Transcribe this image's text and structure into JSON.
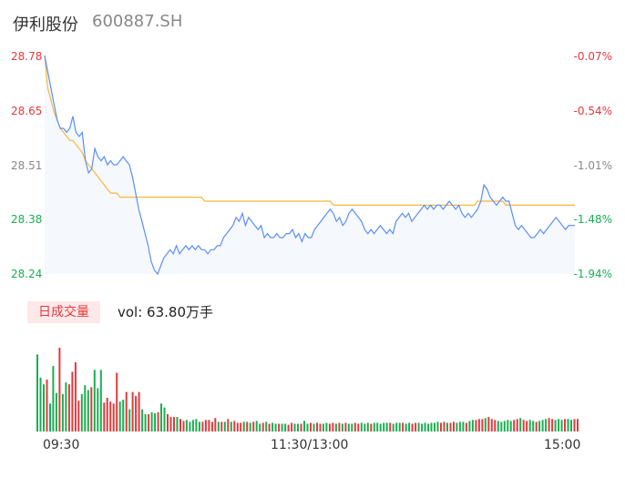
{
  "header": {
    "name": "伊利股份",
    "code": "600887.SH"
  },
  "volume": {
    "tag": "日成交量",
    "text": "vol: 63.80万手"
  },
  "colors": {
    "price": "#5b8ff9",
    "avg": "#f6b93b",
    "up": "#e4393c",
    "down": "#1aae52",
    "flat": "#888888"
  },
  "chart_data": [
    {
      "type": "line",
      "series": [
        {
          "values": [
            28.78,
            28.74,
            28.7,
            28.66,
            28.62,
            28.6,
            28.6,
            28.59,
            28.6,
            28.63,
            28.59,
            28.58,
            28.59,
            28.52,
            28.49,
            28.5,
            28.55,
            28.53,
            28.52,
            28.53,
            28.51,
            28.52,
            28.51,
            28.51,
            28.52,
            28.53,
            28.52,
            28.51,
            28.48,
            28.44,
            28.4,
            28.37,
            28.34,
            28.31,
            28.27,
            28.25,
            28.24,
            28.26,
            28.28,
            28.29,
            28.3,
            28.29,
            28.31,
            28.29,
            28.3,
            28.31,
            28.3,
            28.31,
            28.3,
            28.31,
            28.3,
            28.3,
            28.29,
            28.3,
            28.3,
            28.31,
            28.31,
            28.33,
            28.34,
            28.35,
            28.36,
            28.38,
            28.37,
            28.39,
            28.36,
            28.38,
            28.37,
            28.36,
            28.35,
            28.36,
            28.33,
            28.34,
            28.33,
            28.33,
            28.34,
            28.33,
            28.33,
            28.34,
            28.34,
            28.35,
            28.33,
            28.34,
            28.32,
            28.34,
            28.33,
            28.33,
            28.35,
            28.36,
            28.37,
            28.38,
            28.39,
            28.4,
            28.39,
            28.37,
            28.38,
            28.36,
            28.37,
            28.39,
            28.4,
            28.39,
            28.38,
            28.37,
            28.35,
            28.34,
            28.35,
            28.34,
            28.35,
            28.36,
            28.35,
            28.34,
            28.35,
            28.34,
            28.37,
            28.38,
            28.39,
            28.38,
            28.39,
            28.37,
            28.38,
            28.39,
            28.4,
            28.41,
            28.4,
            28.41,
            28.4,
            28.41,
            28.41,
            28.4,
            28.41,
            28.42,
            28.41,
            28.4,
            28.41,
            28.39,
            28.38,
            28.39,
            28.38,
            28.39,
            28.4,
            28.42,
            28.46,
            28.45,
            28.43,
            28.42,
            28.41,
            28.42,
            28.43,
            28.42,
            28.42,
            28.39,
            28.36,
            28.35,
            28.36,
            28.35,
            28.34,
            28.33,
            28.33,
            28.34,
            28.35,
            28.34,
            28.35,
            28.36,
            28.37,
            28.38,
            28.37,
            28.36,
            28.35,
            28.36,
            28.36,
            28.36
          ]
        },
        {
          "values": [
            28.78,
            28.7,
            28.67,
            28.64,
            28.62,
            28.6,
            28.59,
            28.58,
            28.57,
            28.57,
            28.56,
            28.55,
            28.54,
            28.52,
            28.51,
            28.5,
            28.49,
            28.48,
            28.47,
            28.46,
            28.45,
            28.44,
            28.44,
            28.44,
            28.43,
            28.43,
            28.43,
            28.43,
            28.43,
            28.43,
            28.43,
            28.43,
            28.43,
            28.43,
            28.43,
            28.43,
            28.43,
            28.43,
            28.43,
            28.43,
            28.43,
            28.43,
            28.43,
            28.43,
            28.43,
            28.43,
            28.43,
            28.43,
            28.43,
            28.43,
            28.43,
            28.42,
            28.42,
            28.42,
            28.42,
            28.42,
            28.42,
            28.42,
            28.42,
            28.42,
            28.42,
            28.42,
            28.42,
            28.42,
            28.42,
            28.42,
            28.42,
            28.42,
            28.42,
            28.42,
            28.42,
            28.42,
            28.42,
            28.42,
            28.42,
            28.42,
            28.42,
            28.42,
            28.42,
            28.42,
            28.42,
            28.42,
            28.42,
            28.42,
            28.42,
            28.42,
            28.42,
            28.42,
            28.42,
            28.42,
            28.42,
            28.42,
            28.41,
            28.41,
            28.41,
            28.41,
            28.41,
            28.41,
            28.41,
            28.41,
            28.41,
            28.41,
            28.41,
            28.41,
            28.41,
            28.41,
            28.41,
            28.41,
            28.41,
            28.41,
            28.41,
            28.41,
            28.41,
            28.41,
            28.41,
            28.41,
            28.41,
            28.41,
            28.41,
            28.41,
            28.41,
            28.41,
            28.41,
            28.41,
            28.41,
            28.41,
            28.41,
            28.41,
            28.41,
            28.41,
            28.41,
            28.41,
            28.41,
            28.41,
            28.41,
            28.41,
            28.41,
            28.41,
            28.42,
            28.42,
            28.42,
            28.42,
            28.42,
            28.42,
            28.42,
            28.42,
            28.42,
            28.41,
            28.41,
            28.41,
            28.41,
            28.41,
            28.41,
            28.41,
            28.41,
            28.41,
            28.41,
            28.41,
            28.41,
            28.41,
            28.41,
            28.41,
            28.41,
            28.41,
            28.41,
            28.41,
            28.41,
            28.41,
            28.41,
            28.41
          ]
        }
      ],
      "ylim": [
        28.24,
        28.78
      ],
      "ytick_labels_left": [
        "28.78",
        "28.65",
        "28.51",
        "28.38",
        "28.24"
      ],
      "ytick_labels_right": [
        "-0.07%",
        "-0.54%",
        "-1.01%",
        "-1.48%",
        "-1.94%"
      ],
      "xtick_labels": [
        "09:30",
        "11:30/13:00",
        "15:00"
      ]
    },
    {
      "type": "bar",
      "values": [
        8.0,
        5.6,
        4.9,
        5.4,
        2.9,
        6.8,
        4.0,
        8.7,
        3.9,
        5.1,
        4.9,
        6.2,
        7.2,
        3.2,
        3.9,
        4.8,
        4.3,
        4.6,
        6.4,
        4.5,
        6.4,
        3.0,
        3.5,
        3.1,
        2.9,
        6.1,
        3.1,
        3.3,
        4.1,
        2.3,
        4.1,
        3.7,
        4.1,
        2.3,
        1.8,
        1.8,
        2.0,
        1.9,
        2.0,
        2.9,
        2.5,
        1.8,
        1.5,
        1.5,
        1.5,
        1.3,
        1.1,
        1.2,
        1.0,
        1.2,
        1.3,
        1.0,
        1.0,
        1.2,
        1.2,
        1.0,
        1.4,
        1.0,
        1.0,
        1.0,
        1.3,
        1.0,
        1.1,
        0.9,
        0.9,
        1.0,
        1.0,
        0.9,
        1.0,
        1.1,
        0.8,
        0.9,
        1.0,
        0.8,
        0.9,
        0.8,
        0.8,
        0.8,
        0.8,
        0.7,
        0.9,
        0.8,
        0.8,
        0.8,
        1.1,
        0.8,
        0.9,
        0.8,
        0.9,
        0.8,
        0.8,
        0.9,
        0.8,
        0.9,
        0.8,
        0.9,
        0.8,
        0.9,
        0.8,
        0.8,
        0.9,
        0.8,
        0.9,
        0.8,
        0.9,
        0.8,
        0.9,
        0.9,
        0.8,
        0.9,
        0.9,
        0.9,
        0.8,
        0.9,
        0.9,
        0.9,
        0.8,
        0.9,
        0.8,
        0.9,
        0.9,
        0.8,
        0.9,
        0.8,
        0.9,
        0.9,
        1.0,
        0.9,
        1.0,
        0.9,
        0.9,
        1.0,
        0.9,
        1.0,
        1.0,
        0.9,
        1.1,
        1.2,
        1.2,
        1.3,
        1.3,
        1.4,
        1.5,
        1.3,
        1.2,
        1.1,
        1.0,
        1.1,
        1.2,
        1.1,
        1.2,
        1.3,
        1.4,
        1.2,
        1.1,
        1.2,
        1.1,
        1.0,
        1.1,
        1.2,
        1.3,
        1.4,
        1.3,
        1.2,
        1.3,
        1.2,
        1.3,
        1.3,
        1.2,
        1.3,
        1.3
      ],
      "directions": "dddudddudduuuuddduddduuuuudduduuudduddudduuuduuddddduuuuudududuuudududdududdudduuddudduduudduudududduudddudddddudddudduuddddddduuduudddudduuuduuuddddduuduudduddduudddudduuuuf"
    }
  ]
}
